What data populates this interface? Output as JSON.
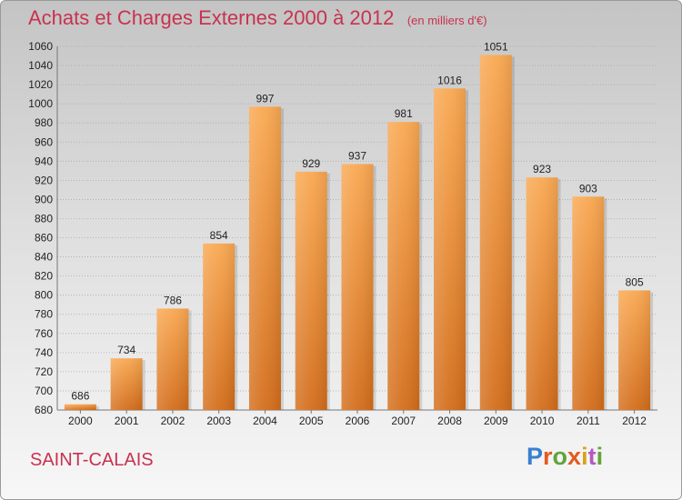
{
  "chart_data": {
    "type": "bar",
    "title": "Achats et Charges Externes 2000 à 2012",
    "subtitle": "(en milliers d'€)",
    "categories": [
      "2000",
      "2001",
      "2002",
      "2003",
      "2004",
      "2005",
      "2006",
      "2007",
      "2008",
      "2009",
      "2010",
      "2011",
      "2012"
    ],
    "values": [
      686,
      734,
      786,
      854,
      997,
      929,
      937,
      981,
      1016,
      1051,
      923,
      903,
      805
    ],
    "ylim": [
      680,
      1060
    ],
    "yticks": [
      680,
      700,
      720,
      740,
      760,
      780,
      800,
      820,
      840,
      860,
      880,
      900,
      920,
      940,
      960,
      980,
      1000,
      1020,
      1040,
      1060
    ],
    "grid": true,
    "bar_color": "#f0923a",
    "bar_color_light": "#f9ab56",
    "bar_color_dark": "#d36d1b"
  },
  "footer": {
    "city": "SAINT-CALAIS",
    "logo": {
      "p": "P",
      "r": "r",
      "o": "o",
      "x": "x",
      "i1": "i",
      "t": "t",
      "i2": "i"
    }
  },
  "colors": {
    "title": "#c8324f"
  }
}
